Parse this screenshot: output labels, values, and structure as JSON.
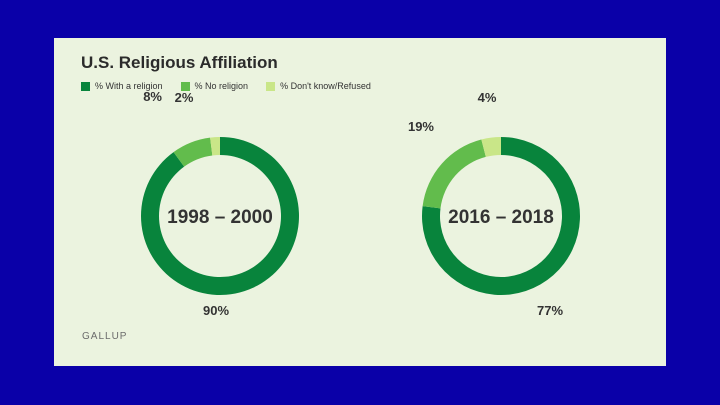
{
  "card": {
    "title": "U.S. Religious Affiliation",
    "source": "GALLUP"
  },
  "colors": {
    "page_background": "#0a00a8",
    "card_background": "#ebf3df",
    "with_religion": "#08843c",
    "no_religion": "#62bc4c",
    "dont_know": "#c9e688"
  },
  "chart_data": [
    {
      "type": "pie",
      "style": "donut",
      "center_label": "1998 – 2000",
      "categories": [
        "% With a religion",
        "% No religion",
        "% Don't know/Refused"
      ],
      "values": [
        90,
        8,
        2
      ],
      "value_labels": [
        "90%",
        "8%",
        "2%"
      ],
      "legend": "top-left"
    },
    {
      "type": "pie",
      "style": "donut",
      "center_label": "2016 – 2018",
      "categories": [
        "% With a religion",
        "% No religion",
        "% Don't know/Refused"
      ],
      "values": [
        77,
        19,
        4
      ],
      "value_labels": [
        "77%",
        "19%",
        "4%"
      ],
      "legend": "top-left"
    }
  ]
}
